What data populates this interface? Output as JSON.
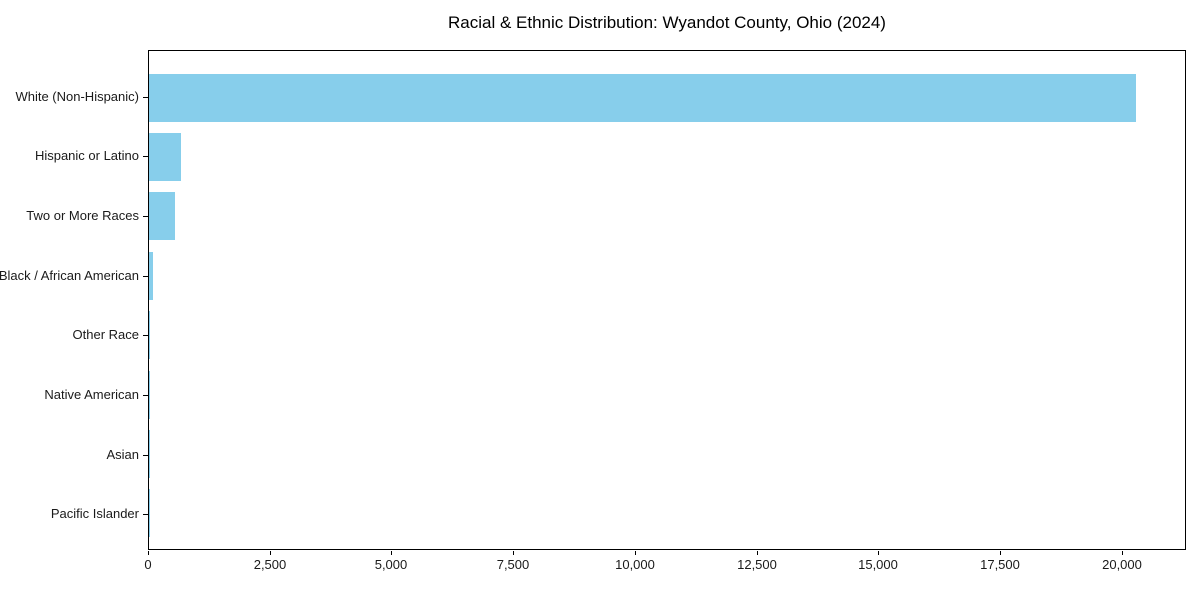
{
  "figure": {
    "background": "#ffffff",
    "text_color": "#1a1a1a",
    "spine_color": "#000000"
  },
  "chart_data": {
    "type": "bar",
    "orientation": "horizontal",
    "title": "Racial & Ethnic Distribution: Wyandot County, Ohio (2024)",
    "xlabel": "",
    "ylabel": "",
    "categories": [
      "White (Non-Hispanic)",
      "Hispanic or Latino",
      "Two or More Races",
      "Black / African American",
      "Other Race",
      "Native American",
      "Asian",
      "Pacific Islander"
    ],
    "values": [
      20300,
      650,
      535,
      85,
      30,
      15,
      10,
      4
    ],
    "bar_color": "#87ceeb",
    "xlim": [
      0,
      21315
    ],
    "xticks": {
      "values": [
        0,
        2500,
        5000,
        7500,
        10000,
        12500,
        15000,
        17500,
        20000
      ],
      "labels": [
        "0",
        "2,500",
        "5,000",
        "7,500",
        "10,000",
        "12,500",
        "15,000",
        "17,500",
        "20,000"
      ]
    },
    "grid": false,
    "legend": null
  }
}
